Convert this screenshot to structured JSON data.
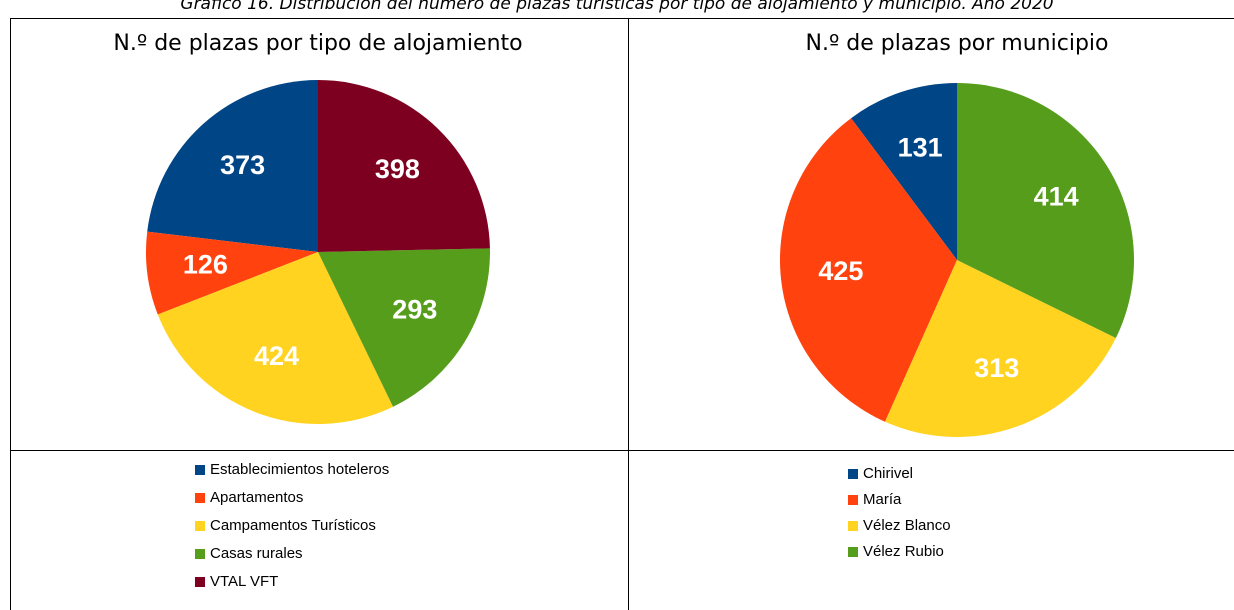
{
  "caption": "Gráfico 16. Distribución del número de plazas turísticas por tipo de alojamiento y municipio. Año 2020",
  "chart_data": [
    {
      "type": "pie",
      "title": "N.º de plazas por tipo de alojamiento",
      "categories": [
        "Establecimientos hoteleros",
        "Apartamentos",
        "Campamentos Turísticos",
        "Casas rurales",
        "VTAL VFT"
      ],
      "values": [
        373,
        126,
        424,
        293,
        398
      ],
      "colors": [
        "#004586",
        "#ff420e",
        "#ffd320",
        "#579d1c",
        "#7e0021"
      ]
    },
    {
      "type": "pie",
      "title": "N.º de plazas por municipio",
      "categories": [
        "Chirivel",
        "María",
        "Vélez Blanco",
        "Vélez Rubio"
      ],
      "values": [
        131,
        425,
        313,
        414
      ],
      "colors": [
        "#004586",
        "#ff420e",
        "#ffd320",
        "#579d1c"
      ]
    }
  ]
}
